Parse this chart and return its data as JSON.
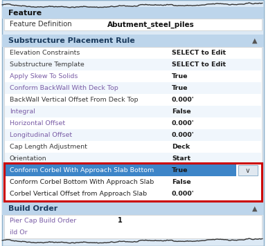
{
  "fig_width": 3.84,
  "fig_height": 3.56,
  "dpi": 100,
  "bg_color": "#ffffff",
  "panel_bg": "#dce9f5",
  "section_hdr_bg": "#bdd5eb",
  "white_row_bg": "#ffffff",
  "feature_label": "Feature",
  "feature_def_label": "Feature Definition",
  "feature_def_value": "Abutment_steel_piles",
  "substructure_label": "Substructure Placement Rule",
  "build_order_label": "Build Order",
  "properties": [
    {
      "label": "Elevation Constraints",
      "value": "SELECT to Edit",
      "lc": "#3a3a3a"
    },
    {
      "label": "Substructure Template",
      "value": "SELECT to Edit",
      "lc": "#3a3a3a"
    },
    {
      "label": "Apply Skew To Solids",
      "value": "True",
      "lc": "#7b5ea7"
    },
    {
      "label": "Conform BackWall With Deck Top",
      "value": "True",
      "lc": "#7b5ea7"
    },
    {
      "label": "BackWall Vertical Offset From Deck Top",
      "value": "0.000'",
      "lc": "#3a3a3a"
    },
    {
      "label": "Integral",
      "value": "False",
      "lc": "#7b5ea7"
    },
    {
      "label": "Horizontal Offset",
      "value": "0.000'",
      "lc": "#7b5ea7"
    },
    {
      "label": "Longitudinal Offset",
      "value": "0.000'",
      "lc": "#7b5ea7"
    },
    {
      "label": "Cap Length Adjustment",
      "value": "Deck",
      "lc": "#3a3a3a"
    },
    {
      "label": "Orientation",
      "value": "Start",
      "lc": "#3a3a3a"
    }
  ],
  "highlighted_rows": [
    {
      "label": "Conform Corbel With Approach Slab Bottom",
      "value": "True",
      "highlighted": true
    },
    {
      "label": "Conform Corbel Bottom With Approach Slab",
      "value": "False",
      "highlighted": false
    },
    {
      "label": "Corbel Vertical Offset from Approach Slab",
      "value": "0.000'",
      "highlighted": false
    }
  ],
  "build_order_rows": [
    {
      "label": "Pier Cap Build Order",
      "value": "1",
      "lc": "#7b5ea7"
    },
    {
      "label": "ild Or",
      "value": "",
      "lc": "#7b5ea7"
    }
  ],
  "highlight_bg": "#3d85c8",
  "red_border_color": "#cc0000",
  "purple": "#7b5ea7",
  "black": "#222222",
  "value_color": "#1a1a1a"
}
